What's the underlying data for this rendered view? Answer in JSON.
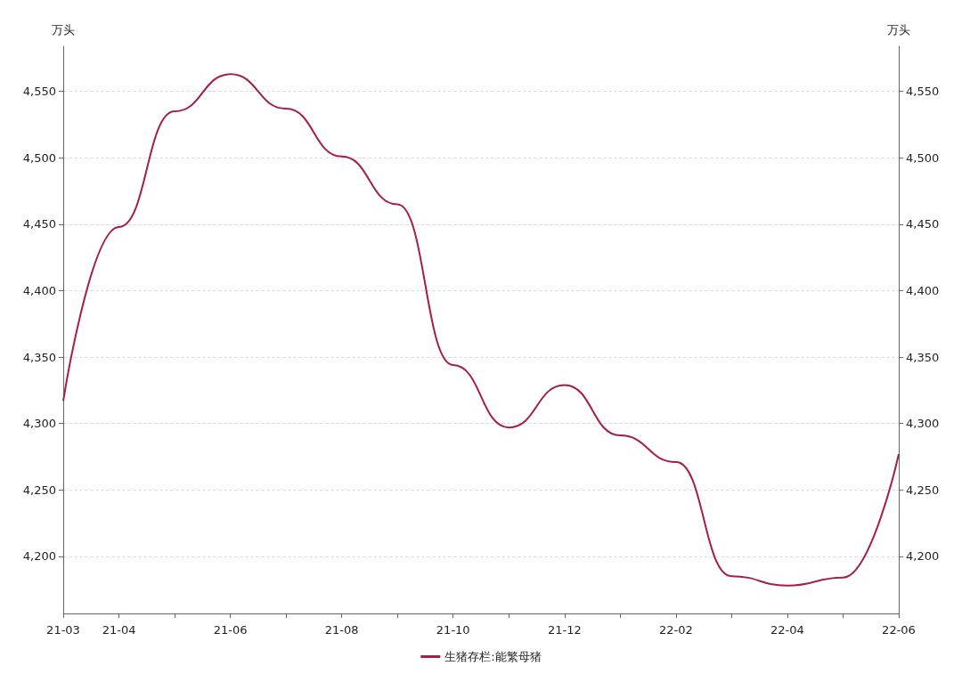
{
  "chart_data": {
    "type": "line",
    "ylabel": "万头",
    "y2label": "万头",
    "categories": [
      "21-03",
      "21-04",
      null,
      "21-06",
      null,
      "21-08",
      null,
      "21-10",
      null,
      "21-12",
      null,
      "22-02",
      null,
      "22-04",
      null,
      "22-06"
    ],
    "series": [
      {
        "name": "生猪存栏:能繁母猪",
        "color": "#a51f45",
        "values": [
          4317,
          4448,
          4535,
          4563,
          4537,
          4501,
          4465,
          4344,
          4297,
          4329,
          4291,
          4271,
          4185,
          4178,
          4184,
          4277
        ]
      }
    ],
    "ylim": [
      4157,
      4584
    ],
    "yticks": [
      {
        "value": 4200,
        "label": "4,200"
      },
      {
        "value": 4250,
        "label": "4,250"
      },
      {
        "value": 4300,
        "label": "4,300"
      },
      {
        "value": 4350,
        "label": "4,350"
      },
      {
        "value": 4400,
        "label": "4,400"
      },
      {
        "value": 4450,
        "label": "4,450"
      },
      {
        "value": 4500,
        "label": "4,500"
      },
      {
        "value": 4550,
        "label": "4,550"
      }
    ],
    "y2lim": [
      4157,
      4584
    ],
    "y2ticks": [
      {
        "value": 4200,
        "label": "4,200"
      },
      {
        "value": 4250,
        "label": "4,250"
      },
      {
        "value": 4300,
        "label": "4,300"
      },
      {
        "value": 4350,
        "label": "4,350"
      },
      {
        "value": 4400,
        "label": "4,400"
      },
      {
        "value": 4450,
        "label": "4,450"
      },
      {
        "value": 4500,
        "label": "4,500"
      },
      {
        "value": 4550,
        "label": "4,550"
      }
    ],
    "grid": "y",
    "legend": "bottom",
    "marker": "none",
    "line_style": "solid"
  }
}
